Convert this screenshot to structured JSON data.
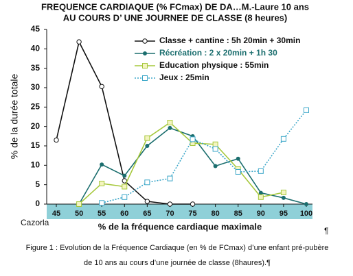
{
  "chart_data": {
    "type": "line",
    "title": "FREQUENCE CARDIAQUE (% FCmax) DE DA…M.-Laure 10 ans",
    "subtitle": "AU COURS D’ UNE JOURNEE DE CLASSE (8 heures)",
    "y_label": "% de la durée totale",
    "x_label": "% de la fréquence cardiaque maximale",
    "x": [
      45,
      50,
      55,
      60,
      65,
      70,
      75,
      80,
      85,
      90,
      95,
      100
    ],
    "xlim": [
      45,
      100
    ],
    "xticks": [
      45,
      50,
      55,
      60,
      65,
      70,
      75,
      80,
      85,
      90,
      95,
      100
    ],
    "ylim": [
      0,
      45
    ],
    "yticks": [
      0,
      5,
      10,
      15,
      20,
      25,
      30,
      35,
      40,
      45
    ],
    "series": [
      {
        "name": "Classe + cantine : 5h 20min + 30min",
        "color": "#111111",
        "marker": "circle-open",
        "values": [
          16.5,
          41.8,
          30.3,
          6,
          0.7,
          0,
          0,
          null,
          null,
          null,
          null,
          null
        ]
      },
      {
        "name": "Récréation : 2 x 20min + 1h 30",
        "color": "#1b6e6e",
        "marker": "circle",
        "values": [
          null,
          0,
          10.2,
          7.3,
          15,
          19.6,
          17.5,
          9.8,
          11.7,
          2.9,
          1.6,
          0
        ]
      },
      {
        "name": "Education physique : 55min",
        "color": "#a6c83c",
        "marker": "square",
        "values": [
          null,
          0,
          5.3,
          4.5,
          17,
          21,
          15.7,
          15.4,
          9,
          1.8,
          3,
          null
        ]
      },
      {
        "name": "Jeux : 25min",
        "color": "#3aa6c8",
        "marker": "square-x",
        "dashed": true,
        "values": [
          null,
          null,
          0.3,
          1.8,
          5.6,
          6.6,
          16.7,
          14.2,
          8.3,
          8.5,
          16.8,
          24.2
        ]
      }
    ]
  },
  "annotations": {
    "author": "Cazorla",
    "pilcrow": "¶"
  },
  "caption": [
    "Figure 1 : Evolution de la Fréquence Cardiaque (en % de FCmax) d’une enfant pré-pubère",
    "de 10 ans au cours d’une journée de classe (8haures).¶"
  ]
}
